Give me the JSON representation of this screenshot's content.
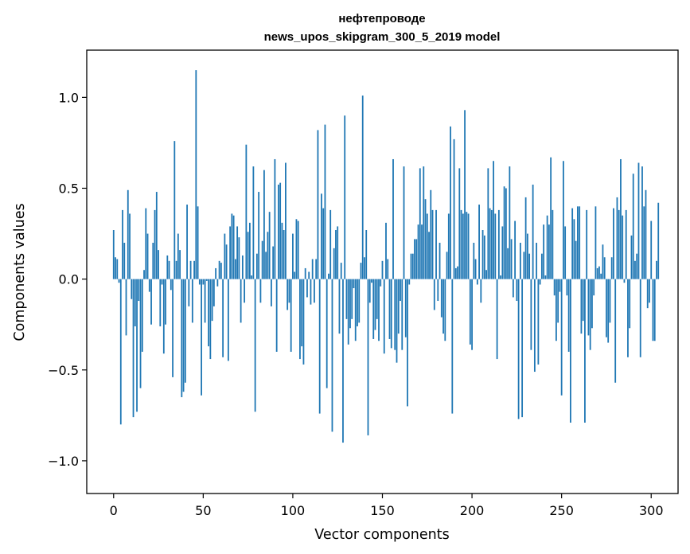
{
  "chart_data": {
    "type": "bar",
    "title_line1": "нефтепроводе",
    "title_line2": "news_upos_skipgram_300_5_2019 model",
    "xlabel": "Vector components",
    "ylabel": "Components values",
    "xlim": [
      -15,
      315
    ],
    "ylim": [
      -1.18,
      1.26
    ],
    "xticks": [
      0,
      50,
      100,
      150,
      200,
      250,
      300
    ],
    "xtick_labels": [
      "0",
      "50",
      "100",
      "150",
      "200",
      "250",
      "300"
    ],
    "yticks": [
      1.0,
      0.5,
      0.0,
      -0.5,
      -1.0
    ],
    "ytick_labels": [
      "1.0",
      "0.5",
      "0.0",
      "−0.5",
      "−1.0"
    ],
    "bar_color": "#1f77b4",
    "grid": false,
    "values": [
      0.27,
      0.12,
      0.11,
      -0.02,
      -0.8,
      0.38,
      0.2,
      -0.31,
      0.49,
      0.36,
      -0.11,
      -0.76,
      -0.26,
      -0.73,
      -0.12,
      -0.6,
      -0.4,
      0.05,
      0.39,
      0.25,
      -0.07,
      -0.25,
      0.2,
      0.38,
      0.48,
      0.16,
      -0.26,
      -0.03,
      -0.41,
      -0.25,
      0.13,
      0.1,
      -0.06,
      -0.54,
      0.76,
      0.1,
      0.25,
      0.16,
      -0.65,
      -0.62,
      -0.57,
      0.41,
      -0.15,
      0.1,
      -0.24,
      0.1,
      1.15,
      0.4,
      -0.03,
      -0.64,
      -0.03,
      -0.24,
      -0.01,
      -0.37,
      -0.44,
      -0.23,
      -0.15,
      0.06,
      -0.04,
      0.1,
      0.09,
      -0.43,
      0.25,
      0.19,
      -0.45,
      0.29,
      0.36,
      0.35,
      0.11,
      0.29,
      0.23,
      -0.24,
      0.13,
      -0.13,
      0.74,
      0.26,
      0.31,
      0.02,
      0.62,
      -0.73,
      0.14,
      0.48,
      -0.13,
      0.21,
      0.6,
      0.15,
      0.26,
      0.37,
      -0.15,
      0.18,
      0.66,
      -0.4,
      0.52,
      0.53,
      0.31,
      0.27,
      0.64,
      -0.17,
      -0.13,
      -0.4,
      0.25,
      0.04,
      0.33,
      0.32,
      -0.44,
      -0.37,
      -0.47,
      0.06,
      -0.1,
      0.04,
      -0.14,
      0.11,
      -0.13,
      0.11,
      0.82,
      -0.74,
      0.47,
      0.39,
      0.85,
      -0.6,
      0.03,
      0.38,
      -0.84,
      0.17,
      0.27,
      0.29,
      -0.3,
      0.09,
      -0.9,
      0.9,
      -0.22,
      -0.36,
      -0.27,
      -0.22,
      -0.05,
      -0.34,
      -0.26,
      -0.24,
      0.09,
      1.01,
      0.12,
      0.27,
      -0.86,
      -0.13,
      -0.02,
      -0.33,
      -0.28,
      -0.22,
      -0.34,
      -0.04,
      0.1,
      -0.41,
      0.31,
      0.11,
      -0.33,
      -0.38,
      0.66,
      -0.39,
      -0.46,
      -0.3,
      -0.12,
      -0.39,
      0.62,
      -0.32,
      -0.7,
      -0.03,
      0.14,
      0.14,
      0.22,
      0.22,
      0.3,
      0.61,
      0.3,
      0.62,
      0.44,
      0.36,
      0.26,
      0.49,
      0.38,
      -0.17,
      0.38,
      -0.12,
      0.2,
      -0.21,
      -0.3,
      -0.34,
      0.15,
      0.36,
      0.84,
      -0.74,
      0.77,
      0.06,
      0.07,
      0.61,
      0.38,
      0.36,
      0.93,
      0.37,
      0.36,
      -0.36,
      -0.39,
      0.2,
      0.11,
      -0.03,
      0.41,
      -0.13,
      0.27,
      0.24,
      0.05,
      0.61,
      0.39,
      0.38,
      0.65,
      0.36,
      -0.44,
      0.38,
      0.02,
      0.29,
      0.51,
      0.5,
      0.17,
      0.62,
      0.22,
      -0.1,
      0.32,
      -0.12,
      -0.77,
      0.2,
      -0.76,
      0.15,
      0.45,
      0.25,
      0.14,
      -0.39,
      0.52,
      -0.51,
      0.2,
      -0.47,
      -0.03,
      0.14,
      0.3,
      0.02,
      0.35,
      0.3,
      0.67,
      0.38,
      -0.09,
      -0.34,
      -0.24,
      -0.07,
      -0.64,
      0.65,
      0.29,
      -0.09,
      -0.4,
      -0.79,
      0.39,
      0.33,
      0.21,
      0.4,
      0.4,
      -0.3,
      -0.23,
      -0.79,
      0.38,
      -0.31,
      -0.39,
      -0.27,
      -0.09,
      0.4,
      0.06,
      0.07,
      0.03,
      0.19,
      0.12,
      -0.32,
      -0.35,
      -0.24,
      0.12,
      0.39,
      -0.57,
      0.45,
      0.38,
      0.66,
      0.35,
      -0.02,
      0.38,
      -0.43,
      -0.27,
      0.24,
      0.58,
      0.1,
      0.14,
      0.64,
      -0.43,
      0.62,
      0.4,
      0.49,
      -0.16,
      -0.13,
      0.32,
      -0.34,
      -0.34,
      0.1,
      0.42
    ]
  }
}
